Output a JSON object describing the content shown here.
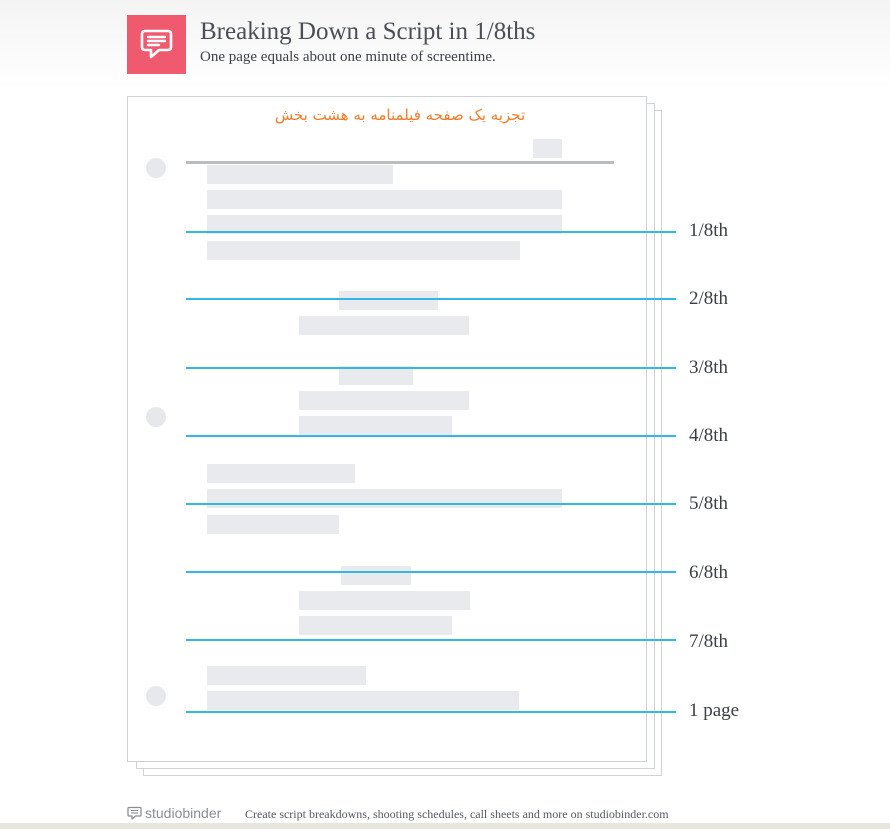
{
  "header": {
    "title": "Breaking Down a Script in 1/8ths",
    "subtitle": "One page equals about one minute of screentime."
  },
  "page": {
    "annotation": "تجزیه یک صفحه فیلمنامه به هشت بخش"
  },
  "divisions": [
    {
      "label": "1/8th"
    },
    {
      "label": "2/8th"
    },
    {
      "label": "3/8th"
    },
    {
      "label": "4/8th"
    },
    {
      "label": "5/8th"
    },
    {
      "label": "6/8th"
    },
    {
      "label": "7/8th"
    },
    {
      "label": "1 page"
    }
  ],
  "footer": {
    "brand": "studiobinder",
    "tagline": "Create script breakdowns, shooting schedules, call sheets and more on studiobinder.com"
  },
  "colors": {
    "brand_accent": "#ef5a6f",
    "division_line": "#35b7e5",
    "annotation_text": "#ef7d2a"
  }
}
